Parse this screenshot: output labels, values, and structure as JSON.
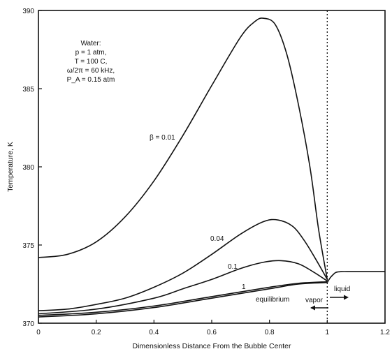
{
  "chart_data": {
    "type": "line",
    "title": "",
    "xlabel": "Dimensionless Distance From the Bubble Center",
    "ylabel": "Temperature, K",
    "xlim": [
      0,
      1.2
    ],
    "ylim": [
      370,
      390
    ],
    "x_ticks": [
      "0",
      "0.2",
      "0.4",
      "0.6",
      "0.8",
      "1",
      "1.2"
    ],
    "y_ticks": [
      "370",
      "375",
      "380",
      "385",
      "390"
    ],
    "grid": false,
    "annotation_lines": [
      "Water:",
      "p = 1 atm,",
      "T = 100 C,",
      "ω/2π = 60 kHz,",
      "P_A = 0.15 atm"
    ],
    "interface_x": 1.0,
    "region_labels": {
      "vapor": "vapor",
      "liquid": "liquid"
    },
    "series": [
      {
        "name": "β = 0.01",
        "label": "β = 0.01",
        "x": [
          0,
          0.1,
          0.2,
          0.3,
          0.4,
          0.5,
          0.6,
          0.7,
          0.75,
          0.78,
          0.82,
          0.86,
          0.9,
          0.94,
          0.97,
          1.0
        ],
        "y": [
          374.2,
          374.4,
          375.2,
          376.8,
          379.1,
          382.0,
          385.2,
          388.3,
          389.3,
          389.5,
          389.1,
          387.2,
          384.0,
          380.0,
          376.0,
          372.8
        ]
      },
      {
        "name": "0.04",
        "label": "0.04",
        "x": [
          0,
          0.1,
          0.2,
          0.3,
          0.4,
          0.5,
          0.6,
          0.7,
          0.78,
          0.83,
          0.88,
          0.92,
          0.96,
          1.0
        ],
        "y": [
          370.8,
          370.9,
          371.2,
          371.6,
          372.3,
          373.2,
          374.4,
          375.7,
          376.5,
          376.6,
          376.2,
          375.3,
          374.1,
          372.8
        ]
      },
      {
        "name": "0.1",
        "label": "0.1",
        "x": [
          0,
          0.2,
          0.4,
          0.5,
          0.6,
          0.7,
          0.78,
          0.84,
          0.9,
          0.95,
          1.0
        ],
        "y": [
          370.6,
          370.9,
          371.6,
          372.2,
          372.8,
          373.5,
          373.9,
          374.0,
          373.8,
          373.3,
          372.7
        ]
      },
      {
        "name": "1",
        "label": "1",
        "x": [
          0,
          0.2,
          0.4,
          0.6,
          0.8,
          0.9,
          1.0
        ],
        "y": [
          370.5,
          370.7,
          371.1,
          371.7,
          372.3,
          372.55,
          372.65
        ]
      },
      {
        "name": "equilibrium",
        "label": "equilibrium",
        "x": [
          0,
          0.2,
          0.4,
          0.6,
          0.8,
          0.9,
          1.0
        ],
        "y": [
          370.4,
          370.6,
          371.0,
          371.6,
          372.2,
          372.5,
          372.6
        ]
      },
      {
        "name": "liquid",
        "label": "",
        "x": [
          1.0,
          1.01,
          1.02,
          1.03,
          1.05,
          1.08,
          1.12,
          1.2
        ],
        "y": [
          372.6,
          372.9,
          373.1,
          373.25,
          373.3,
          373.3,
          373.3,
          373.3
        ]
      }
    ]
  }
}
